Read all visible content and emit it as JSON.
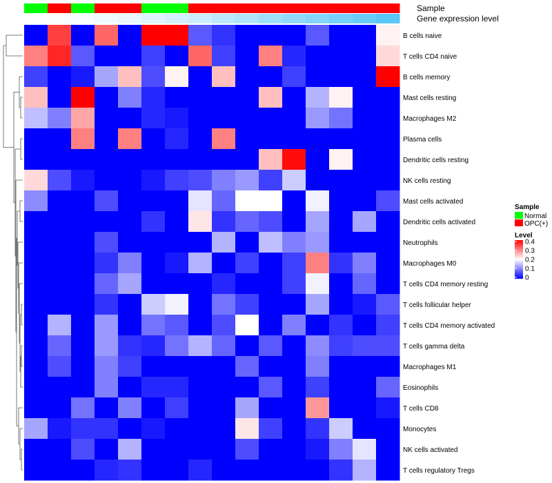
{
  "chart_data": {
    "type": "heatmap",
    "title": "",
    "annotation_labels": {
      "sample": "Sample",
      "expression": "Gene expression level"
    },
    "column_samples": [
      "Normal",
      "OPC(+)",
      "Normal",
      "OPC(+)",
      "OPC(+)",
      "Normal",
      "Normal",
      "OPC(+)",
      "OPC(+)",
      "OPC(+)",
      "OPC(+)",
      "OPC(+)",
      "OPC(+)",
      "OPC(+)",
      "OPC(+)",
      "OPC(+)"
    ],
    "column_expression_level": [
      0.0,
      0.02,
      0.05,
      0.08,
      0.12,
      0.18,
      0.25,
      0.3,
      0.38,
      0.45,
      0.55,
      0.62,
      0.7,
      0.78,
      0.85,
      0.95
    ],
    "rows": [
      "B cells naive",
      "T cells CD4 naive",
      "B cells memory",
      "Mast cells resting",
      "Macrophages M2",
      "Plasma cells",
      "Dendritic cells resting",
      "NK cells resting",
      "Mast cells activated",
      "Dendritic cells activated",
      "Neutrophils",
      "Macrophages M0",
      "T cells CD4 memory resting",
      "T cells follicular helper",
      "T cells CD4 memory activated",
      "T cells gamma delta",
      "Macrophages M1",
      "Eosinophils",
      "T cells CD8",
      "Monocytes",
      "NK cells activated",
      "T cells regulatory  Tregs"
    ],
    "values": [
      [
        0.0,
        0.35,
        0.0,
        0.32,
        0.0,
        0.4,
        0.4,
        0.07,
        0.04,
        0.0,
        0.0,
        0.0,
        0.07,
        0.0,
        0.0,
        0.21
      ],
      [
        0.3,
        0.37,
        0.07,
        0.0,
        0.0,
        0.05,
        0.0,
        0.32,
        0.05,
        0.0,
        0.3,
        0.03,
        0.0,
        0.0,
        0.0,
        0.23
      ],
      [
        0.05,
        0.0,
        0.02,
        0.13,
        0.25,
        0.06,
        0.21,
        0.0,
        0.25,
        0.0,
        0.0,
        0.05,
        0.0,
        0.0,
        0.0,
        0.4
      ],
      [
        0.25,
        0.0,
        0.4,
        0.0,
        0.1,
        0.03,
        0.0,
        0.0,
        0.0,
        0.0,
        0.25,
        0.0,
        0.14,
        0.21,
        0.0,
        0.0
      ],
      [
        0.15,
        0.1,
        0.27,
        0.0,
        0.0,
        0.03,
        0.02,
        0.0,
        0.0,
        0.0,
        0.0,
        0.0,
        0.12,
        0.09,
        0.0,
        0.0
      ],
      [
        0.0,
        0.0,
        0.3,
        0.0,
        0.3,
        0.0,
        0.03,
        0.0,
        0.3,
        0.0,
        0.0,
        0.0,
        0.0,
        0.0,
        0.0,
        0.0
      ],
      [
        0.0,
        0.0,
        0.0,
        0.0,
        0.0,
        0.0,
        0.0,
        0.0,
        0.0,
        0.0,
        0.25,
        0.39,
        0.0,
        0.21,
        0.0,
        0.0
      ],
      [
        0.23,
        0.06,
        0.02,
        0.0,
        0.0,
        0.02,
        0.05,
        0.06,
        0.1,
        0.12,
        0.05,
        0.16,
        0.0,
        0.0,
        0.0,
        0.0
      ],
      [
        0.11,
        0.0,
        0.0,
        0.06,
        0.0,
        0.0,
        0.0,
        0.18,
        0.08,
        0.2,
        0.2,
        0.0,
        0.19,
        0.0,
        0.0,
        0.06
      ],
      [
        0.0,
        0.0,
        0.0,
        0.0,
        0.0,
        0.04,
        0.0,
        0.22,
        0.04,
        0.08,
        0.06,
        0.0,
        0.13,
        0.0,
        0.13,
        0.0
      ],
      [
        0.0,
        0.0,
        0.0,
        0.06,
        0.0,
        0.0,
        0.0,
        0.0,
        0.14,
        0.0,
        0.15,
        0.1,
        0.12,
        0.0,
        0.0,
        0.0
      ],
      [
        0.0,
        0.0,
        0.0,
        0.04,
        0.1,
        0.0,
        0.02,
        0.14,
        0.0,
        0.05,
        0.0,
        0.05,
        0.3,
        0.04,
        0.1,
        0.0
      ],
      [
        0.0,
        0.0,
        0.0,
        0.08,
        0.13,
        0.0,
        0.0,
        0.0,
        0.03,
        0.0,
        0.0,
        0.05,
        0.19,
        0.0,
        0.08,
        0.0
      ],
      [
        0.0,
        0.0,
        0.0,
        0.04,
        0.0,
        0.16,
        0.19,
        0.0,
        0.09,
        0.05,
        0.0,
        0.0,
        0.13,
        0.0,
        0.02,
        0.07
      ],
      [
        0.0,
        0.14,
        0.0,
        0.12,
        0.0,
        0.09,
        0.07,
        0.0,
        0.06,
        0.2,
        0.0,
        0.1,
        0.0,
        0.04,
        0.0,
        0.05
      ],
      [
        0.0,
        0.08,
        0.0,
        0.12,
        0.04,
        0.03,
        0.09,
        0.14,
        0.08,
        0.0,
        0.07,
        0.0,
        0.11,
        0.05,
        0.06,
        0.06
      ],
      [
        0.0,
        0.06,
        0.0,
        0.1,
        0.05,
        0.0,
        0.0,
        0.0,
        0.0,
        0.08,
        0.0,
        0.0,
        0.1,
        0.0,
        0.0,
        0.0
      ],
      [
        0.0,
        0.0,
        0.0,
        0.1,
        0.0,
        0.03,
        0.03,
        0.0,
        0.0,
        0.0,
        0.07,
        0.0,
        0.05,
        0.0,
        0.0,
        0.08
      ],
      [
        0.0,
        0.0,
        0.09,
        0.0,
        0.1,
        0.0,
        0.05,
        0.0,
        0.0,
        0.13,
        0.0,
        0.0,
        0.28,
        0.0,
        0.0,
        0.02
      ],
      [
        0.13,
        0.02,
        0.04,
        0.04,
        0.0,
        0.02,
        0.0,
        0.0,
        0.0,
        0.22,
        0.05,
        0.0,
        0.04,
        0.16,
        0.0,
        0.0
      ],
      [
        0.0,
        0.0,
        0.06,
        0.0,
        0.14,
        0.0,
        0.0,
        0.0,
        0.0,
        0.06,
        0.0,
        0.0,
        0.02,
        0.1,
        0.18,
        0.0
      ],
      [
        0.0,
        0.0,
        0.0,
        0.03,
        0.04,
        0.0,
        0.0,
        0.03,
        0.0,
        0.0,
        0.0,
        0.0,
        0.0,
        0.04,
        0.14,
        0.0
      ]
    ],
    "color_scale": {
      "low": "#0000ff",
      "mid": "#ffffff",
      "high": "#ff0000",
      "range": [
        0,
        0.4
      ],
      "midpoint": 0.2
    },
    "legend_sample": {
      "title": "Sample",
      "entries": [
        {
          "label": "Normal",
          "color": "#00ff00"
        },
        {
          "label": "OPC(+)",
          "color": "#ff0000"
        }
      ]
    },
    "legend_level": {
      "title": "Level",
      "ticks": [
        "0.4",
        "0.3",
        "0.2",
        "0.1",
        "0"
      ]
    },
    "expression_colors": {
      "low": "#ffffff",
      "high": "#4fc3f7"
    }
  }
}
